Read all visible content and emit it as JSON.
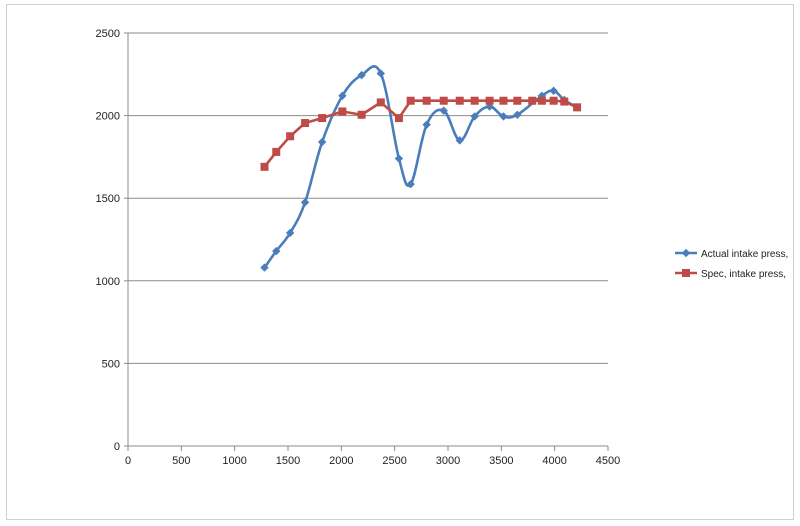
{
  "chart_data": {
    "type": "line",
    "title": "",
    "xlabel": "",
    "ylabel": "",
    "xlim": [
      0,
      4500
    ],
    "ylim": [
      0,
      2500
    ],
    "x_ticks": [
      0,
      500,
      1000,
      1500,
      2000,
      2500,
      3000,
      3500,
      4000,
      4500
    ],
    "y_ticks": [
      0,
      500,
      1000,
      1500,
      2000,
      2500
    ],
    "grid": "horizontal",
    "legend_position": "right",
    "series": [
      {
        "name": "Actual intake press,",
        "color": "#4a7ebb",
        "marker": "diamond",
        "smooth": true,
        "points": [
          [
            1280,
            1080
          ],
          [
            1390,
            1180
          ],
          [
            1520,
            1290
          ],
          [
            1660,
            1475
          ],
          [
            1820,
            1840
          ],
          [
            2010,
            2120
          ],
          [
            2190,
            2245
          ],
          [
            2370,
            2255
          ],
          [
            2540,
            1740
          ],
          [
            2650,
            1585
          ],
          [
            2800,
            1945
          ],
          [
            2960,
            2030
          ],
          [
            3110,
            1850
          ],
          [
            3250,
            1995
          ],
          [
            3390,
            2055
          ],
          [
            3520,
            1995
          ],
          [
            3650,
            2005
          ],
          [
            3880,
            2120
          ],
          [
            3990,
            2150
          ],
          [
            4090,
            2095
          ],
          [
            4210,
            2050
          ]
        ]
      },
      {
        "name": "Spec, intake press,",
        "color": "#be4b48",
        "marker": "square",
        "smooth": false,
        "points": [
          [
            1280,
            1690
          ],
          [
            1390,
            1780
          ],
          [
            1520,
            1875
          ],
          [
            1660,
            1955
          ],
          [
            1820,
            1985
          ],
          [
            2010,
            2025
          ],
          [
            2190,
            2005
          ],
          [
            2370,
            2080
          ],
          [
            2540,
            1985
          ],
          [
            2650,
            2090
          ],
          [
            2800,
            2090
          ],
          [
            2960,
            2090
          ],
          [
            3110,
            2090
          ],
          [
            3250,
            2090
          ],
          [
            3390,
            2090
          ],
          [
            3520,
            2090
          ],
          [
            3650,
            2090
          ],
          [
            3790,
            2090
          ],
          [
            3880,
            2090
          ],
          [
            3990,
            2090
          ],
          [
            4090,
            2085
          ],
          [
            4210,
            2050
          ]
        ]
      }
    ]
  }
}
